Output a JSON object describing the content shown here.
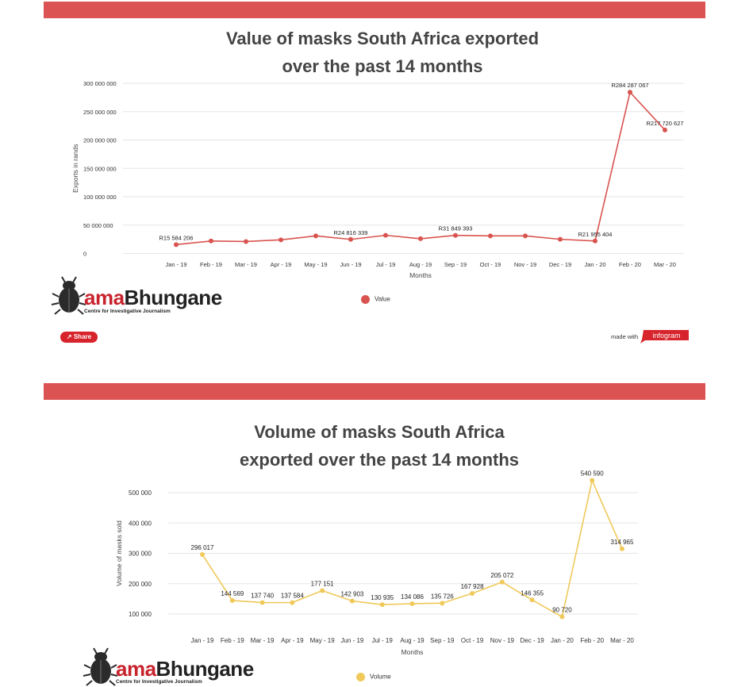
{
  "share_label": "Share",
  "made_with": "made with",
  "infogram_label": "infogram",
  "logo": {
    "brand_ama": "ama",
    "brand_rest": "Bhungane",
    "tagline": "Centre for Investigative Journalism"
  },
  "colors": {
    "accent": "#dc5353",
    "value_series": "#d9534f",
    "volume_series": "#f0c95a"
  },
  "chart_data": [
    {
      "type": "line",
      "title_line1": "Value of masks South Africa exported",
      "title_line2": "over the past 14 months",
      "xlabel": "Months",
      "ylabel": "Exports in rands",
      "ylim": [
        0,
        300000000
      ],
      "yticks": [
        "0",
        "50 000 000",
        "100 000 000",
        "150 000 000",
        "200 000 000",
        "250 000 000",
        "300 000 000"
      ],
      "categories": [
        "Jan - 19",
        "Feb - 19",
        "Mar - 19",
        "Apr - 19",
        "May - 19",
        "Jun - 19",
        "Jul - 19",
        "Aug - 19",
        "Sep - 19",
        "Oct - 19",
        "Nov - 19",
        "Dec - 19",
        "Jan - 20",
        "Feb - 20",
        "Mar - 20"
      ],
      "series": [
        {
          "name": "Value",
          "values": [
            15584206,
            22000000,
            21000000,
            24000000,
            31000000,
            24816339,
            32000000,
            26000000,
            31849393,
            31000000,
            31000000,
            25000000,
            21955404,
            284287067,
            217720627
          ]
        }
      ],
      "labels": [
        {
          "index": 0,
          "text": "R15 584 206"
        },
        {
          "index": 5,
          "text": "R24 816 339"
        },
        {
          "index": 8,
          "text": "R31 849 393"
        },
        {
          "index": 12,
          "text": "R21 955 404"
        },
        {
          "index": 13,
          "text": "R284 287 067"
        },
        {
          "index": 14,
          "text": "R217 720 627"
        }
      ],
      "legend_position": "bottom-center",
      "grid": true
    },
    {
      "type": "line",
      "title_line1": "Volume of masks South Africa",
      "title_line2": "exported over the past 14 months",
      "xlabel": "Months",
      "ylabel": "Volume of masks sold",
      "ylim": [
        100000,
        500000
      ],
      "yticks": [
        "100 000",
        "200 000",
        "300 000",
        "400 000",
        "500 000"
      ],
      "categories": [
        "Jan - 19",
        "Feb - 19",
        "Mar - 19",
        "Apr - 19",
        "May - 19",
        "Jun - 19",
        "Jul - 19",
        "Aug - 19",
        "Sep - 19",
        "Oct - 19",
        "Nov - 19",
        "Dec - 19",
        "Jan - 20",
        "Feb - 20",
        "Mar - 20"
      ],
      "series": [
        {
          "name": "Volume",
          "values": [
            296017,
            144569,
            137740,
            137584,
            177151,
            142903,
            130935,
            134086,
            135726,
            167928,
            205072,
            146355,
            90720,
            540590,
            314965
          ]
        }
      ],
      "labels": [
        {
          "index": 0,
          "text": "296 017"
        },
        {
          "index": 1,
          "text": "144 569"
        },
        {
          "index": 2,
          "text": "137 740"
        },
        {
          "index": 3,
          "text": "137 584"
        },
        {
          "index": 4,
          "text": "177 151"
        },
        {
          "index": 5,
          "text": "142 903"
        },
        {
          "index": 6,
          "text": "130 935"
        },
        {
          "index": 7,
          "text": "134 086"
        },
        {
          "index": 8,
          "text": "135 726"
        },
        {
          "index": 9,
          "text": "167 928"
        },
        {
          "index": 10,
          "text": "205 072"
        },
        {
          "index": 11,
          "text": "146 355"
        },
        {
          "index": 12,
          "text": "90 720"
        },
        {
          "index": 13,
          "text": "540 590"
        },
        {
          "index": 14,
          "text": "314 965"
        }
      ],
      "legend_position": "bottom-center",
      "grid": true
    }
  ]
}
